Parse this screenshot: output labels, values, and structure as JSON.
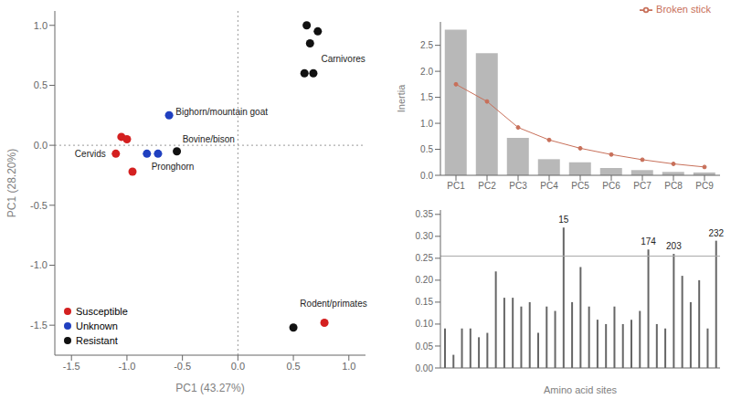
{
  "chart_data": [
    {
      "type": "scatter",
      "xlabel": "PC1 (43.27%)",
      "ylabel": "PC1 (28.20%)",
      "series": [
        {
          "name": "Susceptible",
          "color": "#d42020",
          "x": [
            -1.05,
            -1.0,
            -0.95,
            -1.1,
            0.78
          ],
          "values": [
            0.07,
            0.05,
            -0.22,
            -0.07,
            -1.48
          ]
        },
        {
          "name": "Unknown",
          "color": "#2040c0",
          "x": [
            -0.62,
            -0.82,
            -0.72
          ],
          "values": [
            0.25,
            -0.07,
            -0.07
          ]
        },
        {
          "name": "Resistant",
          "color": "#111111",
          "x": [
            -0.55,
            0.5,
            0.6,
            0.68,
            0.65,
            0.72,
            0.62
          ],
          "values": [
            -0.05,
            -1.52,
            0.6,
            0.6,
            0.85,
            0.95,
            1.0
          ]
        }
      ],
      "annotations": [
        {
          "text": "Bighorn/mountain goat",
          "x": -0.56,
          "y": 0.28
        },
        {
          "text": "Bovine/bison",
          "x": -0.5,
          "y": 0.05
        },
        {
          "text": "Pronghorn",
          "x": -0.78,
          "y": -0.18
        },
        {
          "text": "Cervids",
          "x": -1.47,
          "y": -0.07
        },
        {
          "text": "Carnivores",
          "x": 0.75,
          "y": 0.72
        },
        {
          "text": "Rodent/primates",
          "x": 0.56,
          "y": -1.32
        }
      ],
      "hline": 0,
      "vline": 0,
      "xlim": [
        -1.65,
        1.15
      ],
      "ylim": [
        -1.75,
        1.12
      ],
      "xticks": [
        -1.5,
        {
          "value": -1.0,
          "label": "-1.0"
        },
        -0.5,
        {
          "value": 0.0,
          "label": "0.0"
        },
        0.5,
        {
          "value": 1.0,
          "label": "1.0"
        }
      ],
      "yticks": [
        -1.5,
        {
          "value": -1.0,
          "label": "-1.0"
        },
        -0.5,
        {
          "value": 0.0,
          "label": "0.0"
        },
        0.5,
        {
          "value": 1.0,
          "label": "1.0"
        }
      ],
      "legend": "lower left"
    },
    {
      "type": "bar",
      "ylabel": "Inertia",
      "categories": [
        "PC1",
        "PC2",
        "PC3",
        "PC4",
        "PC5",
        "PC6",
        "PC7",
        "PC8",
        "PC9"
      ],
      "series": [
        {
          "type": "bar",
          "color": "#b8b8b8",
          "values": [
            2.8,
            2.35,
            0.72,
            0.31,
            0.25,
            0.14,
            0.1,
            0.065,
            0.055
          ]
        },
        {
          "type": "line",
          "name": "Broken stick",
          "color": "#c8705a",
          "marker": "o",
          "values": [
            1.75,
            1.42,
            0.92,
            0.68,
            0.52,
            0.4,
            0.3,
            0.22,
            0.16
          ]
        }
      ],
      "ylim": [
        0,
        2.95
      ],
      "yticks": [
        {
          "value": 0.0,
          "label": "0.0"
        },
        0.5,
        {
          "value": 1.0,
          "label": "1.0"
        },
        1.5,
        {
          "value": 2.0,
          "label": "2.0"
        },
        2.5
      ],
      "legend": "upper right"
    },
    {
      "type": "bar",
      "xlabel": "Amino acid sites",
      "categories": [
        null,
        null,
        null,
        null,
        null,
        null,
        null,
        null,
        null,
        null,
        null,
        null,
        null,
        null,
        null,
        null,
        null,
        null,
        null,
        null,
        null,
        null,
        null,
        null,
        null,
        null,
        null,
        null,
        null,
        null,
        null,
        null,
        null
      ],
      "values": [
        0.09,
        0.03,
        0.09,
        0.09,
        0.07,
        0.08,
        0.22,
        0.16,
        0.16,
        0.14,
        0.15,
        0.08,
        0.14,
        0.13,
        0.32,
        0.15,
        0.23,
        0.14,
        0.11,
        0.1,
        0.14,
        0.1,
        0.11,
        0.13,
        0.27,
        0.1,
        0.09,
        0.26,
        0.21,
        0.15,
        0.2,
        0.09,
        0.29
      ],
      "labels": [
        null,
        null,
        null,
        null,
        null,
        null,
        null,
        null,
        null,
        null,
        null,
        null,
        null,
        null,
        "15",
        null,
        null,
        null,
        null,
        null,
        null,
        null,
        null,
        null,
        "174",
        null,
        null,
        "203",
        null,
        null,
        null,
        null,
        "232"
      ],
      "color": "#666666",
      "hline": 0.255,
      "ylim": [
        0.0,
        0.36
      ],
      "yticks": [
        {
          "value": 0.0,
          "label": "0.00"
        },
        0.05,
        {
          "value": 0.1,
          "label": "0.10"
        },
        0.15,
        {
          "value": 0.2,
          "label": "0.20"
        },
        0.25,
        {
          "value": 0.3,
          "label": "0.30"
        },
        0.35
      ],
      "tick_labels": "y"
    }
  ]
}
